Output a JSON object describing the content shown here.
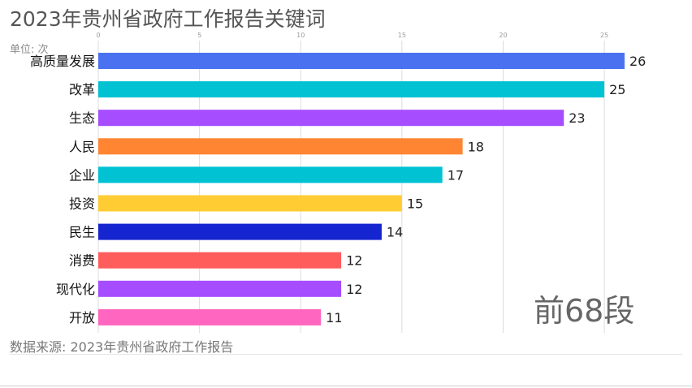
{
  "title": "2023年贵州省政府工作报告关键词",
  "unit_label": "单位: 次",
  "source_label": "数据来源: 2023年贵州省政府工作报告",
  "watermark": "前68段",
  "chart_data": {
    "type": "bar",
    "orientation": "horizontal",
    "title": "2023年贵州省政府工作报告关键词",
    "xlabel": "",
    "ylabel": "",
    "xlim": [
      0,
      26
    ],
    "x_ticks": [
      0,
      5,
      10,
      15,
      20,
      25
    ],
    "grid": true,
    "categories": [
      "高质量发展",
      "改革",
      "生态",
      "人民",
      "企业",
      "投资",
      "民生",
      "消费",
      "现代化",
      "开放"
    ],
    "values": [
      26,
      25,
      23,
      18,
      17,
      15,
      14,
      12,
      12,
      11
    ],
    "colors": [
      "#4a72f0",
      "#00c2d3",
      "#a64dff",
      "#ff8533",
      "#00c2d3",
      "#ffcc33",
      "#1525d0",
      "#ff5c5c",
      "#a64dff",
      "#ff66c0"
    ]
  }
}
